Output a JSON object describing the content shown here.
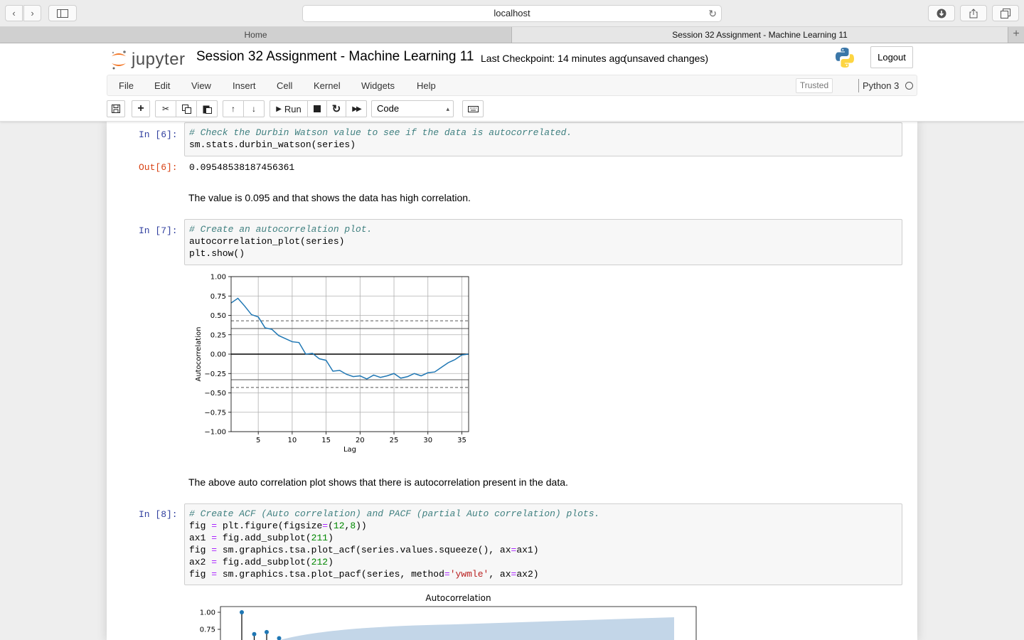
{
  "browser": {
    "url": "localhost",
    "tabs": [
      {
        "label": "Home",
        "active": false
      },
      {
        "label": "Session 32 Assignment - Machine Learning 11",
        "active": true
      }
    ]
  },
  "header": {
    "logo_text": "jupyter",
    "notebook_title": "Session 32 Assignment - Machine Learning 11",
    "checkpoint": "Last Checkpoint: 14 minutes ago",
    "save_status": "(unsaved changes)",
    "logout_label": "Logout"
  },
  "menubar": {
    "items": [
      "File",
      "Edit",
      "View",
      "Insert",
      "Cell",
      "Kernel",
      "Widgets",
      "Help"
    ],
    "trusted": "Trusted",
    "kernel": "Python 3"
  },
  "toolbar": {
    "run_label": "Run",
    "cell_type": "Code"
  },
  "cells": {
    "c6": {
      "prompt_in": "In [6]:",
      "prompt_out": "Out[6]:",
      "comment": "# Check the Durbin Watson value to see if the data is autocorrelated.",
      "output": "0.09548538187456361"
    },
    "md1": "The value is 0.095 and that shows the data has high correlation.",
    "c7": {
      "prompt_in": "In [7]:",
      "comment": "# Create an autocorrelation plot."
    },
    "md2": "The above auto correlation plot shows that there is autocorrelation present in the data.",
    "c8": {
      "prompt_in": "In [8]:",
      "comment": "# Create ACF (Auto correlation) and PACF (partial Auto correlation) plots."
    }
  },
  "chart_data": [
    {
      "type": "line",
      "title": "",
      "xlabel": "Lag",
      "ylabel": "Autocorrelation",
      "xlim": [
        1,
        36
      ],
      "ylim": [
        -1.0,
        1.0
      ],
      "xticks": [
        5,
        10,
        15,
        20,
        25,
        30,
        35
      ],
      "yticks": [
        "1.00",
        "0.75",
        "0.50",
        "0.25",
        "0.00",
        "−0.25",
        "−0.50",
        "−0.75",
        "−1.00"
      ],
      "grid": true,
      "reference_lines": {
        "solid": [
          0.33,
          -0.33,
          0.0
        ],
        "dashed": [
          0.43,
          -0.43
        ]
      },
      "x": [
        1,
        2,
        3,
        4,
        5,
        6,
        7,
        8,
        9,
        10,
        11,
        12,
        13,
        14,
        15,
        16,
        17,
        18,
        19,
        20,
        21,
        22,
        23,
        24,
        25,
        26,
        27,
        28,
        29,
        30,
        31,
        32,
        33,
        34,
        35,
        36
      ],
      "y": [
        0.66,
        0.72,
        0.62,
        0.51,
        0.48,
        0.34,
        0.32,
        0.24,
        0.2,
        0.16,
        0.15,
        0.0,
        0.01,
        -0.06,
        -0.08,
        -0.22,
        -0.21,
        -0.26,
        -0.29,
        -0.28,
        -0.32,
        -0.27,
        -0.3,
        -0.28,
        -0.25,
        -0.31,
        -0.29,
        -0.25,
        -0.28,
        -0.24,
        -0.23,
        -0.17,
        -0.11,
        -0.07,
        -0.01,
        0.0
      ]
    },
    {
      "type": "scatter",
      "title": "Autocorrelation",
      "xlabel": "",
      "ylabel": "",
      "yticks": [
        "1.00",
        "0.75"
      ],
      "x": [
        0,
        1,
        2,
        3
      ],
      "y": [
        1.0,
        0.68,
        0.71,
        0.62
      ]
    }
  ]
}
